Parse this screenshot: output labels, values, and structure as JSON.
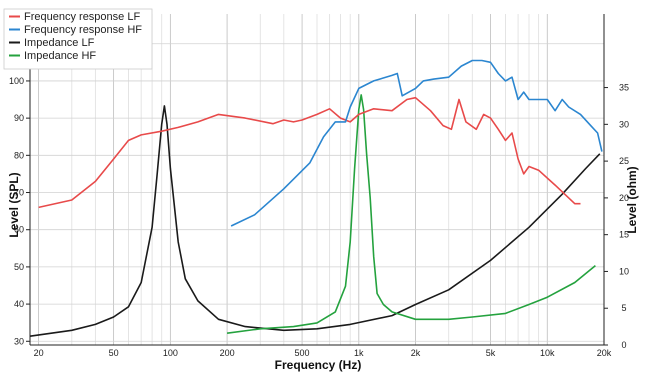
{
  "chart_data": {
    "type": "line",
    "xlabel": "Frequency (Hz)",
    "ylabel": "Level (SPL)",
    "y2label": "Level (ohm)",
    "x_scale": "log",
    "xlim": [
      18,
      20000
    ],
    "ylim": [
      29,
      118
    ],
    "y2lim": [
      0,
      45
    ],
    "x_ticks": [
      {
        "value": 20,
        "label": "20"
      },
      {
        "value": 50,
        "label": "50"
      },
      {
        "value": 100,
        "label": "100"
      },
      {
        "value": 200,
        "label": "200"
      },
      {
        "value": 500,
        "label": "500"
      },
      {
        "value": 1000,
        "label": "1k"
      },
      {
        "value": 2000,
        "label": "2k"
      },
      {
        "value": 5000,
        "label": "5k"
      },
      {
        "value": 10000,
        "label": "10k"
      },
      {
        "value": 20000,
        "label": "20k"
      }
    ],
    "y_ticks": [
      {
        "value": 30,
        "label": "30"
      },
      {
        "value": 40,
        "label": "40"
      },
      {
        "value": 50,
        "label": "50"
      },
      {
        "value": 60,
        "label": "60"
      },
      {
        "value": 70,
        "label": "70"
      },
      {
        "value": 80,
        "label": "80"
      },
      {
        "value": 90,
        "label": "90"
      },
      {
        "value": 100,
        "label": "100"
      },
      {
        "value": 110,
        "label": "110"
      }
    ],
    "y2_ticks": [
      {
        "value": 0,
        "label": "0"
      },
      {
        "value": 5,
        "label": "5"
      },
      {
        "value": 10,
        "label": "10"
      },
      {
        "value": 15,
        "label": "15"
      },
      {
        "value": 20,
        "label": "20"
      },
      {
        "value": 25,
        "label": "25"
      },
      {
        "value": 30,
        "label": "30"
      },
      {
        "value": 35,
        "label": "35"
      }
    ],
    "grid": true,
    "legend_position": "top-left",
    "series": [
      {
        "name": "Frequency response LF",
        "color": "#e84a4a",
        "axis": "left",
        "points": [
          [
            20,
            66
          ],
          [
            30,
            68
          ],
          [
            40,
            73
          ],
          [
            50,
            79
          ],
          [
            60,
            84
          ],
          [
            70,
            85.5
          ],
          [
            90,
            86.5
          ],
          [
            110,
            87.5
          ],
          [
            140,
            89
          ],
          [
            180,
            91
          ],
          [
            250,
            90
          ],
          [
            350,
            88.5
          ],
          [
            400,
            89.5
          ],
          [
            450,
            89
          ],
          [
            500,
            89.5
          ],
          [
            600,
            91
          ],
          [
            700,
            92.5
          ],
          [
            800,
            90
          ],
          [
            900,
            89
          ],
          [
            1000,
            91
          ],
          [
            1200,
            92.5
          ],
          [
            1500,
            92
          ],
          [
            1800,
            95
          ],
          [
            2000,
            95.5
          ],
          [
            2400,
            92
          ],
          [
            2800,
            88
          ],
          [
            3100,
            87
          ],
          [
            3400,
            95
          ],
          [
            3700,
            89
          ],
          [
            4200,
            87
          ],
          [
            4600,
            91
          ],
          [
            5000,
            90
          ],
          [
            5500,
            87
          ],
          [
            6000,
            84
          ],
          [
            6500,
            86
          ],
          [
            7000,
            79
          ],
          [
            7500,
            75
          ],
          [
            8000,
            77
          ],
          [
            9000,
            76
          ],
          [
            11000,
            72
          ],
          [
            14000,
            67
          ],
          [
            15000,
            67
          ]
        ]
      },
      {
        "name": "Frequency response HF",
        "color": "#2b86d0",
        "axis": "left",
        "points": [
          [
            210,
            61
          ],
          [
            280,
            64
          ],
          [
            400,
            71
          ],
          [
            550,
            78
          ],
          [
            650,
            85
          ],
          [
            750,
            89
          ],
          [
            850,
            89
          ],
          [
            900,
            93
          ],
          [
            1000,
            98
          ],
          [
            1200,
            100
          ],
          [
            1500,
            101.5
          ],
          [
            1600,
            102
          ],
          [
            1700,
            96
          ],
          [
            2000,
            98
          ],
          [
            2200,
            100
          ],
          [
            2500,
            100.5
          ],
          [
            3000,
            101
          ],
          [
            3500,
            104
          ],
          [
            4000,
            105.5
          ],
          [
            4500,
            105.5
          ],
          [
            5000,
            105
          ],
          [
            5500,
            102
          ],
          [
            6000,
            100
          ],
          [
            6500,
            101
          ],
          [
            7000,
            95
          ],
          [
            7500,
            97
          ],
          [
            8000,
            95
          ],
          [
            9000,
            95
          ],
          [
            10000,
            95
          ],
          [
            11000,
            92
          ],
          [
            12000,
            95
          ],
          [
            13000,
            93
          ],
          [
            15000,
            91
          ],
          [
            17000,
            88
          ],
          [
            18500,
            86
          ],
          [
            19500,
            81
          ]
        ]
      },
      {
        "name": "Impedance LF",
        "color": "#1a1a1a",
        "axis": "right",
        "points": [
          [
            18,
            1.2
          ],
          [
            30,
            2
          ],
          [
            40,
            2.8
          ],
          [
            50,
            3.8
          ],
          [
            60,
            5.2
          ],
          [
            70,
            8.5
          ],
          [
            80,
            16
          ],
          [
            85,
            23
          ],
          [
            90,
            30
          ],
          [
            93,
            32.5
          ],
          [
            96,
            30
          ],
          [
            100,
            24
          ],
          [
            110,
            14
          ],
          [
            120,
            9
          ],
          [
            140,
            6
          ],
          [
            180,
            3.5
          ],
          [
            250,
            2.5
          ],
          [
            400,
            2
          ],
          [
            600,
            2.2
          ],
          [
            900,
            2.8
          ],
          [
            1500,
            4
          ],
          [
            2000,
            5.5
          ],
          [
            3000,
            7.5
          ],
          [
            5000,
            11.5
          ],
          [
            8000,
            16
          ],
          [
            12000,
            20.5
          ],
          [
            16000,
            24
          ],
          [
            19000,
            26
          ]
        ]
      },
      {
        "name": "Impedance HF",
        "color": "#24a23e",
        "axis": "right",
        "points": [
          [
            200,
            1.6
          ],
          [
            300,
            2.2
          ],
          [
            450,
            2.5
          ],
          [
            600,
            3
          ],
          [
            750,
            4.5
          ],
          [
            850,
            8
          ],
          [
            900,
            14
          ],
          [
            950,
            24
          ],
          [
            1000,
            32
          ],
          [
            1030,
            34
          ],
          [
            1060,
            32
          ],
          [
            1100,
            26
          ],
          [
            1150,
            20
          ],
          [
            1200,
            12
          ],
          [
            1250,
            7
          ],
          [
            1350,
            5.5
          ],
          [
            1500,
            4.5
          ],
          [
            2000,
            3.5
          ],
          [
            3000,
            3.5
          ],
          [
            4000,
            3.8
          ],
          [
            6000,
            4.3
          ],
          [
            8000,
            5.5
          ],
          [
            10000,
            6.5
          ],
          [
            14000,
            8.5
          ],
          [
            18000,
            10.8
          ]
        ]
      }
    ]
  }
}
